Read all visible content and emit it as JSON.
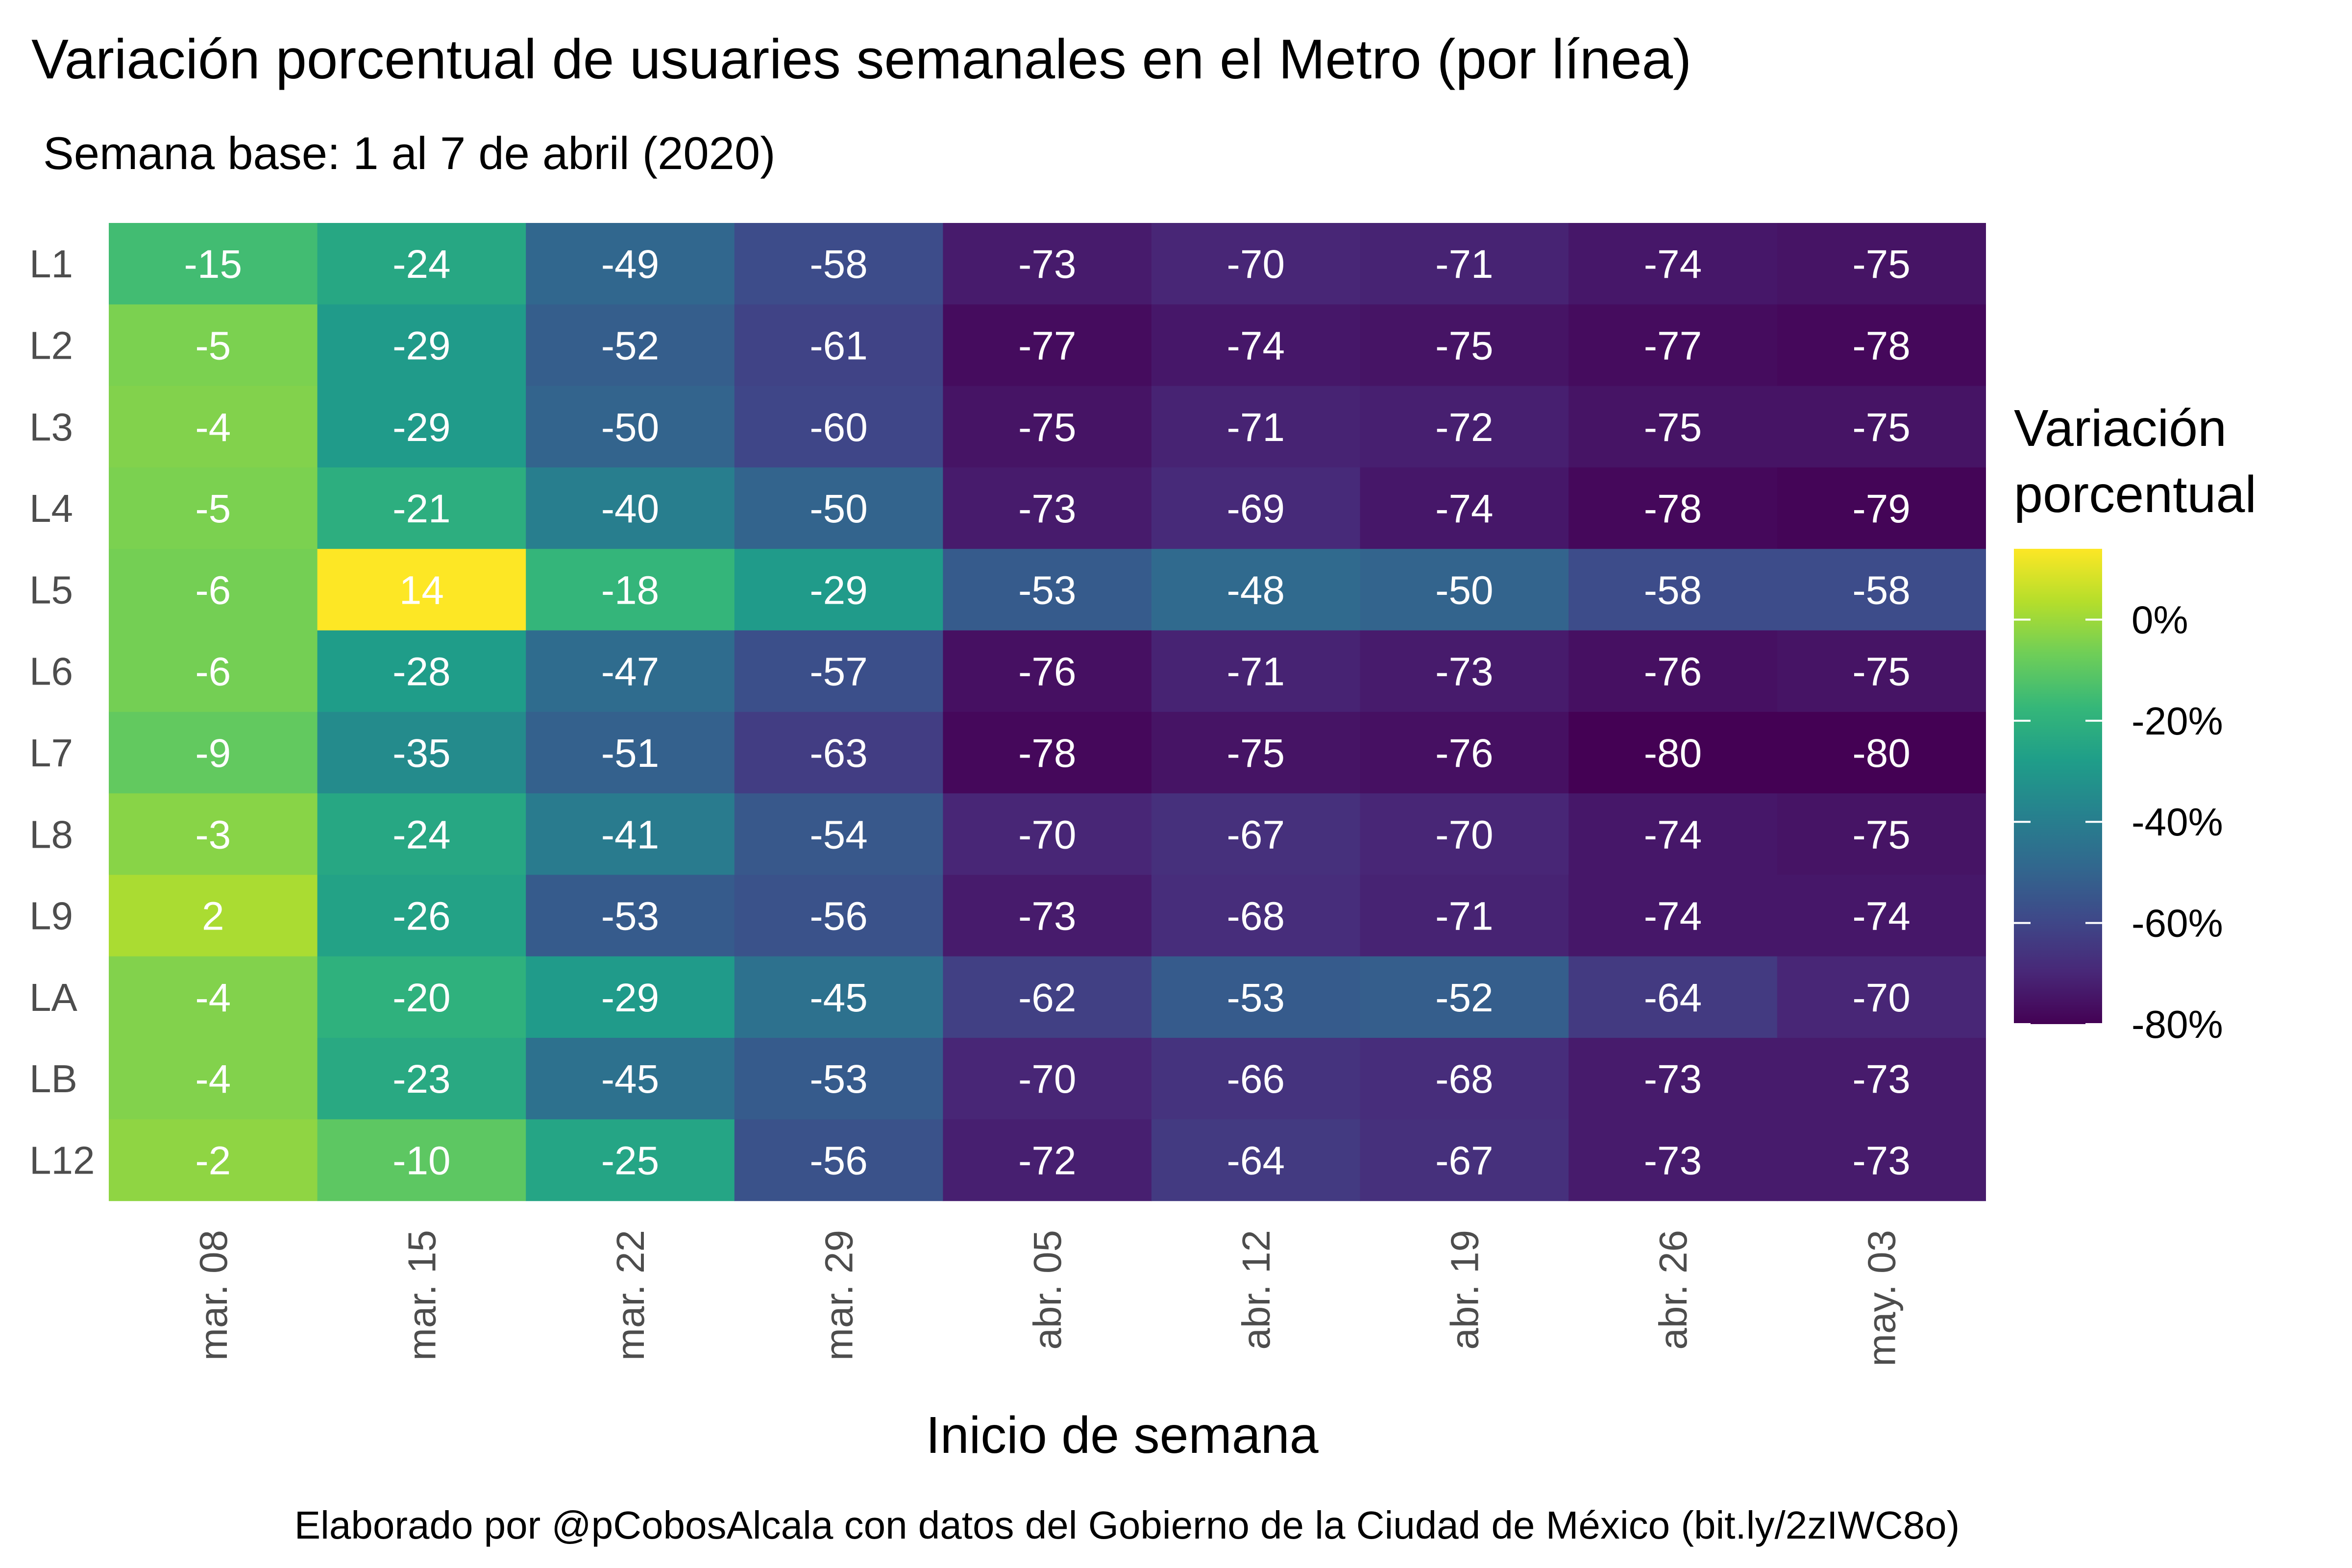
{
  "chart_data": {
    "type": "heatmap",
    "title": "Variación porcentual de usuaries semanales en el Metro (por línea)",
    "subtitle": "Semana base: 1 al 7 de abril (2020)",
    "xlabel": "Inicio de semana",
    "ylabel": "",
    "caption": "Elaborado por @pCobosAlcala con datos del Gobierno de la Ciudad de México (bit.ly/2zIWC8o)",
    "x": [
      "mar. 08",
      "mar. 15",
      "mar. 22",
      "mar. 29",
      "abr. 05",
      "abr. 12",
      "abr. 19",
      "abr. 26",
      "may. 03"
    ],
    "y": [
      "L1",
      "L2",
      "L3",
      "L4",
      "L5",
      "L6",
      "L7",
      "L8",
      "L9",
      "LA",
      "LB",
      "L12"
    ],
    "values": [
      [
        -15,
        -24,
        -49,
        -58,
        -73,
        -70,
        -71,
        -74,
        -75
      ],
      [
        -5,
        -29,
        -52,
        -61,
        -77,
        -74,
        -75,
        -77,
        -78
      ],
      [
        -4,
        -29,
        -50,
        -60,
        -75,
        -71,
        -72,
        -75,
        -75
      ],
      [
        -5,
        -21,
        -40,
        -50,
        -73,
        -69,
        -74,
        -78,
        -79
      ],
      [
        -6,
        14,
        -18,
        -29,
        -53,
        -48,
        -50,
        -58,
        -58
      ],
      [
        -6,
        -28,
        -47,
        -57,
        -76,
        -71,
        -73,
        -76,
        -75
      ],
      [
        -9,
        -35,
        -51,
        -63,
        -78,
        -75,
        -76,
        -80,
        -80
      ],
      [
        -3,
        -24,
        -41,
        -54,
        -70,
        -67,
        -70,
        -74,
        -75
      ],
      [
        2,
        -26,
        -53,
        -56,
        -73,
        -68,
        -71,
        -74,
        -74
      ],
      [
        -4,
        -20,
        -29,
        -45,
        -62,
        -53,
        -52,
        -64,
        -70
      ],
      [
        -4,
        -23,
        -45,
        -53,
        -70,
        -66,
        -68,
        -73,
        -73
      ],
      [
        -2,
        -10,
        -25,
        -56,
        -72,
        -64,
        -67,
        -73,
        -73
      ]
    ],
    "colorbar": {
      "title_line1": "Variación",
      "title_line2": "porcentual",
      "ticks": [
        0,
        -20,
        -40,
        -60,
        -80
      ],
      "tick_labels": [
        "0%",
        "-20%",
        "-40%",
        "-60%",
        "-80%"
      ],
      "range": [
        -80,
        14
      ],
      "palette": "viridis"
    },
    "legend_position": "right",
    "grid": false
  }
}
